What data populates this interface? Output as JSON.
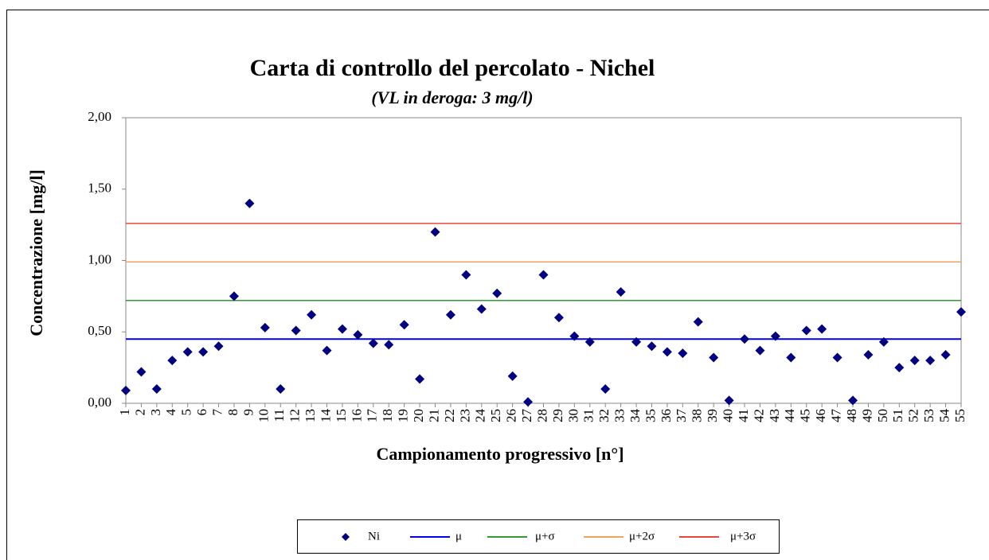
{
  "chart_data": {
    "type": "scatter",
    "title": "Carta di controllo del percolato - Nichel",
    "subtitle": "(VL in deroga: 3 mg/l)",
    "y_label": "Concentrazione [mg/l]",
    "x_label": "Campionamento progressivo [n°]",
    "categories": [
      1,
      2,
      3,
      4,
      5,
      6,
      7,
      8,
      9,
      10,
      11,
      12,
      13,
      14,
      15,
      16,
      17,
      18,
      19,
      20,
      21,
      22,
      23,
      24,
      25,
      26,
      27,
      28,
      29,
      30,
      31,
      32,
      33,
      34,
      35,
      36,
      37,
      38,
      39,
      40,
      41,
      42,
      43,
      44,
      45,
      46,
      47,
      48,
      49,
      50,
      51,
      52,
      53,
      54,
      55
    ],
    "series": [
      {
        "name": "Ni",
        "color": "#000080",
        "values": [
          0.09,
          0.22,
          0.1,
          0.3,
          0.36,
          0.36,
          0.4,
          0.75,
          1.4,
          0.53,
          0.1,
          0.51,
          0.62,
          0.37,
          0.52,
          0.48,
          0.42,
          0.41,
          0.55,
          0.17,
          1.2,
          0.62,
          0.9,
          0.66,
          0.77,
          0.19,
          0.01,
          0.9,
          0.6,
          0.47,
          0.43,
          0.1,
          0.78,
          0.43,
          0.4,
          0.36,
          0.35,
          0.57,
          0.32,
          0.02,
          0.45,
          0.37,
          0.47,
          0.32,
          0.51,
          0.52,
          0.32,
          0.02,
          0.34,
          0.43,
          0.25,
          0.3,
          0.3,
          0.34,
          0.64
        ]
      }
    ],
    "reference_lines": [
      {
        "name": "μ",
        "color": "#0000ee",
        "value": 0.45
      },
      {
        "name": "μ+σ",
        "color": "#339933",
        "value": 0.72
      },
      {
        "name": "μ+2σ",
        "color": "#f4a15a",
        "value": 0.99
      },
      {
        "name": "μ+3σ",
        "color": "#e8483a",
        "value": 1.26
      }
    ],
    "ylim": [
      0,
      2
    ],
    "yticks": [
      {
        "value": 0,
        "label": "0,00"
      },
      {
        "value": 0.5,
        "label": "0,50"
      },
      {
        "value": 1,
        "label": "1,00"
      },
      {
        "value": 1.5,
        "label": "1,50"
      },
      {
        "value": 2,
        "label": "2,00"
      }
    ],
    "legend": "bottom"
  }
}
